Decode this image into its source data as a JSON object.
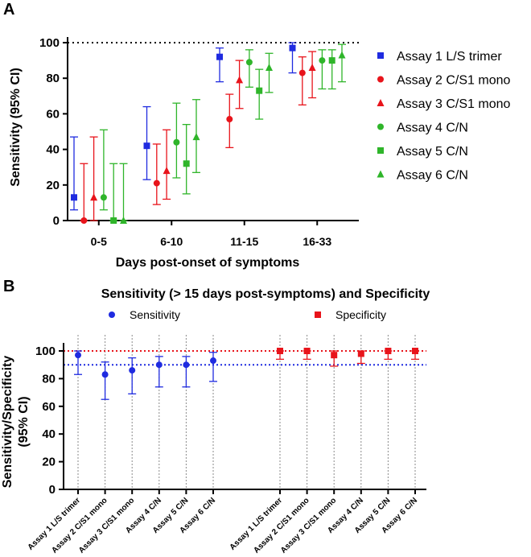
{
  "colors": {
    "blue": "#1f2be0",
    "red": "#e8141b",
    "green": "#2fb52a",
    "axis": "#000000",
    "grid": "#8a8a8a",
    "ref": "#000000"
  },
  "chart_data": [
    {
      "type": "scatter",
      "panel_label": "A",
      "title": "",
      "xlabel": "Days post-onset of symptoms",
      "ylabel": "Sensitivity (95% CI)",
      "ylim": [
        0,
        100
      ],
      "yticks": [
        "0",
        "20",
        "40",
        "60",
        "80",
        "100"
      ],
      "categories": [
        "0-5",
        "6-10",
        "11-15",
        "16-33"
      ],
      "reference_line": 100,
      "legend_position": "right",
      "series": [
        {
          "name": "Assay 1 L/S trimer",
          "marker": "square",
          "color": "blue",
          "values": [
            13,
            42,
            92,
            97
          ],
          "lower": [
            6,
            23,
            78,
            83
          ],
          "upper": [
            47,
            64,
            97,
            100
          ]
        },
        {
          "name": "Assay 2 C/S1 mono",
          "marker": "circle",
          "color": "red",
          "values": [
            0,
            21,
            57,
            83
          ],
          "lower": [
            0,
            9,
            41,
            65
          ],
          "upper": [
            32,
            43,
            71,
            92
          ]
        },
        {
          "name": "Assay 3 C/S1 mono",
          "marker": "triangle",
          "color": "red",
          "values": [
            13,
            28,
            79,
            86
          ],
          "lower": [
            0,
            12,
            63,
            69
          ],
          "upper": [
            47,
            51,
            90,
            95
          ]
        },
        {
          "name": "Assay 4 C/N",
          "marker": "circle",
          "color": "green",
          "values": [
            13,
            44,
            89,
            90
          ],
          "lower": [
            6,
            24,
            75,
            74
          ],
          "upper": [
            51,
            66,
            96,
            96
          ]
        },
        {
          "name": "Assay 5 C/N",
          "marker": "square",
          "color": "green",
          "values": [
            0,
            32,
            73,
            90
          ],
          "lower": [
            0,
            15,
            57,
            74
          ],
          "upper": [
            32,
            54,
            85,
            96
          ]
        },
        {
          "name": "Assay 6 C/N",
          "marker": "triangle",
          "color": "green",
          "values": [
            0,
            47,
            86,
            93
          ],
          "lower": [
            0,
            27,
            72,
            78
          ],
          "upper": [
            32,
            68,
            94,
            99
          ]
        }
      ]
    },
    {
      "type": "scatter",
      "panel_label": "B",
      "title": "Sensitivity (> 15 days post-symptoms) and Specificity",
      "xlabel": "",
      "ylabel": "Sensitivity/Specificity (95% CI)",
      "ylabel_lines": [
        "Sensitivity/Specificity",
        "(95% CI)"
      ],
      "ylim": [
        0,
        100
      ],
      "yticks": [
        "0",
        "20",
        "40",
        "60",
        "80",
        "100"
      ],
      "categories": [
        "Assay 1 L/S trimer",
        "Assay 2 C/S1 mono",
        "Assay 3 C/S1 mono",
        "Assay 4 C/N",
        "Assay 5 C/N",
        "Assay 6 C/N"
      ],
      "reference_lines": [
        {
          "value": 100,
          "color": "red"
        },
        {
          "value": 90,
          "color": "blue"
        }
      ],
      "legend_position": "top",
      "series": [
        {
          "name": "Sensitivity",
          "marker": "circle",
          "color": "blue",
          "values": [
            97,
            83,
            86,
            90,
            90,
            93
          ],
          "lower": [
            83,
            65,
            69,
            74,
            74,
            78
          ],
          "upper": [
            100,
            92,
            95,
            96,
            96,
            99
          ]
        },
        {
          "name": "Specificity",
          "marker": "square",
          "color": "red",
          "values": [
            100,
            100,
            97,
            98,
            100,
            100
          ],
          "lower": [
            94,
            94,
            89,
            91,
            94,
            94
          ],
          "upper": [
            100,
            100,
            100,
            100,
            100,
            100
          ]
        }
      ]
    }
  ]
}
